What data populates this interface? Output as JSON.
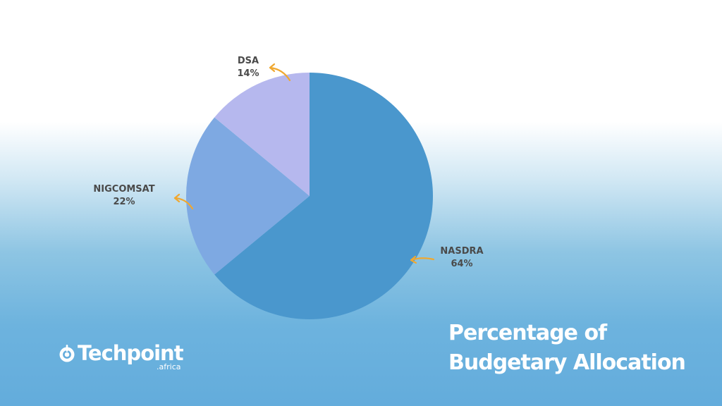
{
  "title": {
    "line1": "Percentage of",
    "line2": "Budgetary Allocation"
  },
  "logo": {
    "word": "Techpoint",
    "sub": ".africa"
  },
  "colors": {
    "arrow": "#f0a830",
    "label": "#4a4a4a"
  },
  "chart_data": {
    "type": "pie",
    "title": "Percentage of Budgetary Allocation",
    "unit": "%",
    "start_angle": "12 o'clock",
    "direction": "clockwise",
    "slices": [
      {
        "label": "NASDRA",
        "value": 64,
        "display": "64%",
        "color": "#4a97cd"
      },
      {
        "label": "NIGCOMSAT",
        "value": 22,
        "display": "22%",
        "color": "#7ea9e2"
      },
      {
        "label": "DSA",
        "value": 14,
        "display": "14%",
        "color": "#b6b8ee"
      }
    ]
  }
}
